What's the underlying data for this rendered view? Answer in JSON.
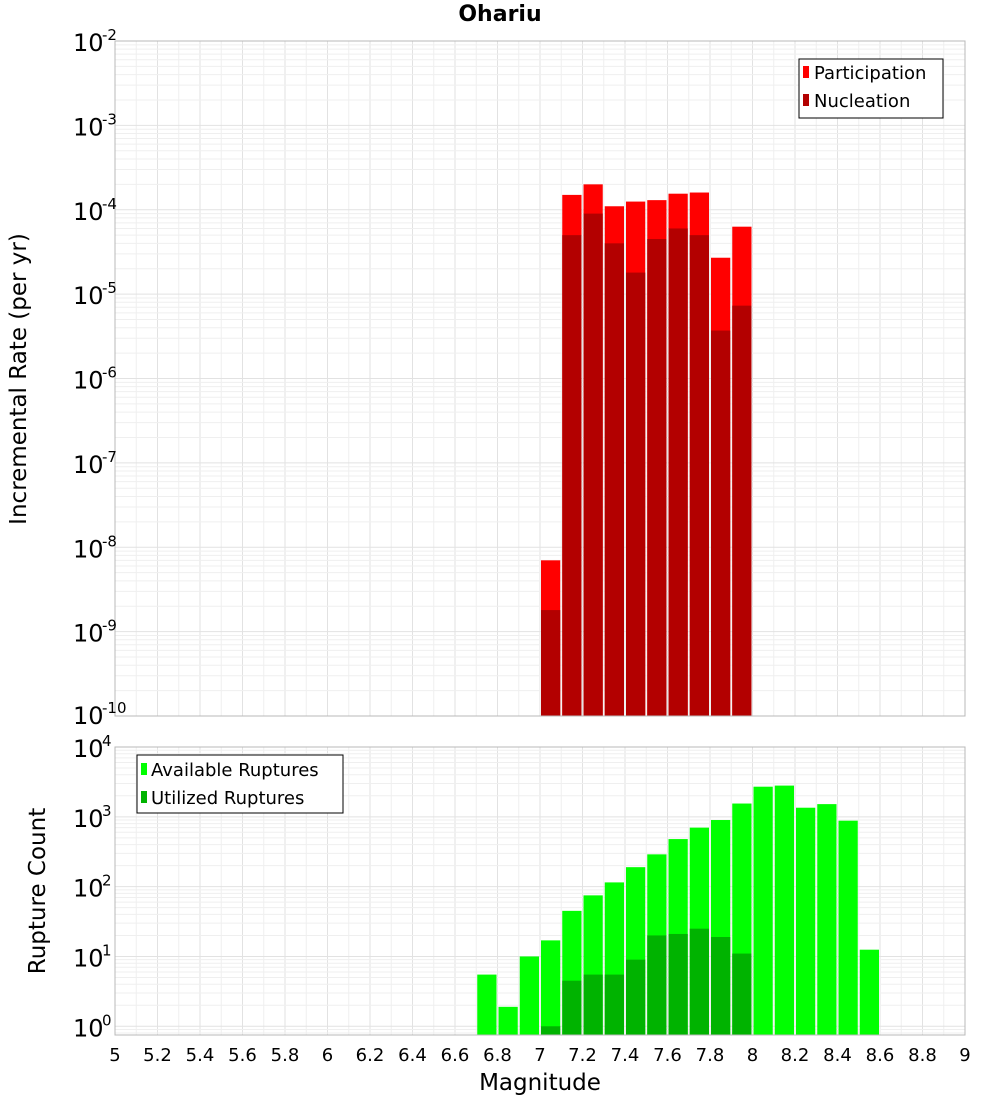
{
  "chart_data": [
    {
      "type": "bar",
      "title": "Ohariu",
      "ylabel": "Incremental Rate (per yr)",
      "xlabel": "",
      "xlim": [
        5,
        9
      ],
      "ylim": [
        1e-10,
        0.01
      ],
      "y_scale": "log",
      "grid": true,
      "legend_position": "top-right",
      "bin_width": 0.1,
      "y_ticks": [
        {
          "base": "10",
          "exp": "-2",
          "value": 0.01
        },
        {
          "base": "10",
          "exp": "-3",
          "value": 0.001
        },
        {
          "base": "10",
          "exp": "-4",
          "value": 0.0001
        },
        {
          "base": "10",
          "exp": "-5",
          "value": 1e-05
        },
        {
          "base": "10",
          "exp": "-6",
          "value": 1e-06
        },
        {
          "base": "10",
          "exp": "-7",
          "value": 1e-07
        },
        {
          "base": "10",
          "exp": "-8",
          "value": 1e-08
        },
        {
          "base": "10",
          "exp": "-9",
          "value": 1e-09
        },
        {
          "base": "10",
          "exp": "-10",
          "value": 1e-10
        }
      ],
      "x": [
        7.05,
        7.15,
        7.25,
        7.35,
        7.45,
        7.55,
        7.65,
        7.75,
        7.85,
        7.95
      ],
      "series": [
        {
          "name": "Participation",
          "color": "#ff0000",
          "values": [
            7e-09,
            0.00015,
            0.0002,
            0.00011,
            0.000125,
            0.00013,
            0.000155,
            0.00016,
            2.7e-05,
            6.3e-05
          ]
        },
        {
          "name": "Nucleation",
          "color": "#b30000",
          "values": [
            1.8e-09,
            5e-05,
            9e-05,
            4e-05,
            1.8e-05,
            4.5e-05,
            6e-05,
            5e-05,
            3.7e-06,
            7.3e-06
          ]
        }
      ]
    },
    {
      "type": "bar",
      "title": "",
      "ylabel": "Rupture Count",
      "xlabel": "Magnitude",
      "xlim": [
        5,
        9
      ],
      "ylim": [
        0.75,
        10000
      ],
      "y_scale": "log",
      "grid": true,
      "legend_position": "top-left",
      "bin_width": 0.1,
      "x_ticks": [
        "5",
        "5.2",
        "5.4",
        "5.6",
        "5.8",
        "6",
        "6.2",
        "6.4",
        "6.6",
        "6.8",
        "7",
        "7.2",
        "7.4",
        "7.6",
        "7.8",
        "8",
        "8.2",
        "8.4",
        "8.6",
        "8.8",
        "9"
      ],
      "y_ticks": [
        {
          "base": "10",
          "exp": "4",
          "value": 10000
        },
        {
          "base": "10",
          "exp": "3",
          "value": 1000
        },
        {
          "base": "10",
          "exp": "2",
          "value": 100
        },
        {
          "base": "10",
          "exp": "1",
          "value": 10
        },
        {
          "base": "10",
          "exp": "0",
          "value": 1
        }
      ],
      "x": [
        6.75,
        6.85,
        6.95,
        7.05,
        7.15,
        7.25,
        7.35,
        7.45,
        7.55,
        7.65,
        7.75,
        7.85,
        7.95,
        8.05,
        8.15,
        8.25,
        8.35,
        8.45,
        8.55
      ],
      "series": [
        {
          "name": "Available Ruptures",
          "color": "#00ff00",
          "values": [
            5.5,
            1.9,
            10,
            17,
            45,
            75,
            115,
            190,
            290,
            480,
            700,
            900,
            1550,
            2700,
            2800,
            1350,
            1520,
            880,
            12.5
          ]
        },
        {
          "name": "Utilized Ruptures",
          "color": "#00b300",
          "values": [
            null,
            null,
            null,
            1.0,
            4.5,
            5.5,
            5.5,
            9,
            20,
            21,
            25,
            19,
            11,
            null,
            null,
            null,
            null,
            null,
            null
          ]
        }
      ]
    }
  ]
}
